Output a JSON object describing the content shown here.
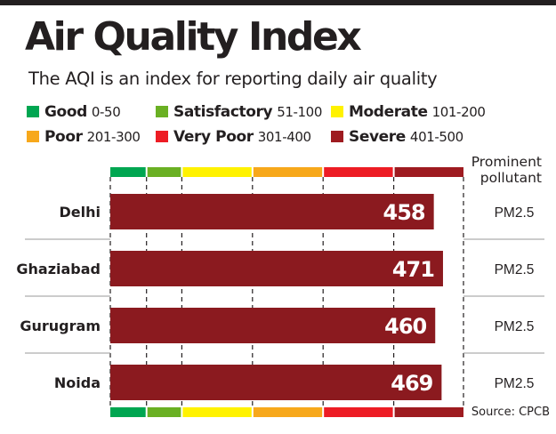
{
  "title": "Air Quality Index",
  "subtitle": "The AQI is an index for reporting daily air quality",
  "legend": [
    {
      "name": "Good",
      "range": "0-50",
      "color": "#00a651"
    },
    {
      "name": "Satisfactory",
      "range": "51-100",
      "color": "#6ab023"
    },
    {
      "name": "Moderate",
      "range": "101-200",
      "color": "#fff200"
    },
    {
      "name": "Poor",
      "range": "201-300",
      "color": "#f7a81b"
    },
    {
      "name": "Very Poor",
      "range": "301-400",
      "color": "#ed1c24"
    },
    {
      "name": "Severe",
      "range": "401-500",
      "color": "#9e1b20"
    }
  ],
  "prominent_header": "Prominent pollutant",
  "source": "Source: CPCB",
  "chart_data": {
    "type": "bar",
    "orientation": "horizontal",
    "title": "Air Quality Index",
    "xlim": [
      0,
      500
    ],
    "categories": [
      "Delhi",
      "Ghaziabad",
      "Gurugram",
      "Noida"
    ],
    "values": [
      458,
      471,
      460,
      469
    ],
    "pollutants": [
      "PM2.5",
      "PM2.5",
      "PM2.5",
      "PM2.5"
    ],
    "bar_color": "#8b1a1f",
    "scale_bands": [
      {
        "from": 0,
        "to": 50,
        "color": "#00a651"
      },
      {
        "from": 50,
        "to": 100,
        "color": "#6ab023"
      },
      {
        "from": 100,
        "to": 200,
        "color": "#fff200"
      },
      {
        "from": 200,
        "to": 300,
        "color": "#f7a81b"
      },
      {
        "from": 300,
        "to": 400,
        "color": "#ed1c24"
      },
      {
        "from": 400,
        "to": 500,
        "color": "#9e1b20"
      }
    ]
  }
}
